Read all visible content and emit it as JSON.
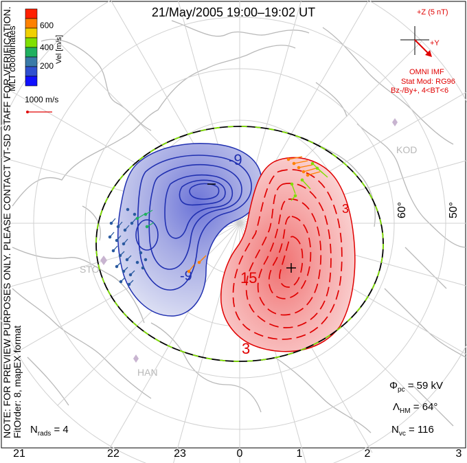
{
  "title": "21/May/2005 19:00–19:02 UT",
  "colorbar": {
    "label": "Vel [m/s]",
    "ticks": [
      "600",
      "400",
      "200"
    ],
    "colors": [
      "#ff2000",
      "#ff8000",
      "#f0d000",
      "#80e000",
      "#20b060",
      "#3a7aa8",
      "#3050d0",
      "#1010ff"
    ]
  },
  "coordinates_label": "MLT coordinates",
  "scale_vector_label": "1000 m/s",
  "imf_panel": {
    "scale_label": "+Z (5 nT)",
    "y_label": "+Y",
    "source_label": "OMNI IMF",
    "stat_mod_label": "Stat Mod: RG96",
    "condition_label": "Bz-/By+, 4<BT<6",
    "color": "#e00000"
  },
  "contour_labels": {
    "negative": [
      "-9",
      "-9"
    ],
    "positive": [
      "15",
      "3",
      "3"
    ]
  },
  "latitude_labels": [
    "60°",
    "50°"
  ],
  "station_labels": [
    "KOD",
    "STO",
    "HAN"
  ],
  "note_text": "NOTE: FOR PREVIEW PURPOSES ONLY. PLEASE CONTACT VT-SD STAFF FOR VERIFICATION.",
  "fit_order_text": "FitOrder: 8, mapEX format",
  "stats": {
    "phi_pc": {
      "symbol": "Φ",
      "subscript": "pc",
      "value": "= 59 kV"
    },
    "lambda_hm": {
      "symbol": "Λ",
      "subscript": "HM",
      "value": "= 64°"
    },
    "n_vc": {
      "symbol": "N",
      "subscript": "vc",
      "value": "= 116"
    },
    "n_rads": {
      "symbol": "N",
      "subscript": "rads",
      "value": "= 4"
    }
  },
  "mlt_ticks": [
    "21",
    "22",
    "23",
    "0",
    "1",
    "2",
    "3"
  ],
  "convection_colors": {
    "negative": "#3040c0",
    "positive": "#e00000",
    "boundary": "#80e000"
  }
}
